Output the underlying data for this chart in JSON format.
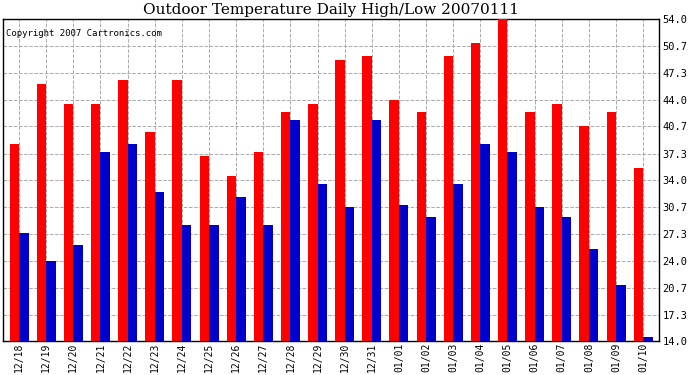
{
  "title": "Outdoor Temperature Daily High/Low 20070111",
  "copyright": "Copyright 2007 Cartronics.com",
  "dates": [
    "12/18",
    "12/19",
    "12/20",
    "12/21",
    "12/22",
    "12/23",
    "12/24",
    "12/25",
    "12/26",
    "12/27",
    "12/28",
    "12/29",
    "12/30",
    "12/31",
    "01/01",
    "01/02",
    "01/03",
    "01/04",
    "01/05",
    "01/06",
    "01/07",
    "01/08",
    "01/09",
    "01/10"
  ],
  "highs": [
    38.5,
    46.0,
    43.5,
    43.5,
    46.5,
    40.0,
    46.5,
    37.0,
    34.5,
    37.5,
    42.5,
    43.5,
    49.0,
    49.5,
    44.0,
    42.5,
    49.5,
    51.0,
    54.0,
    42.5,
    43.5,
    40.7,
    42.5,
    35.5
  ],
  "lows": [
    27.5,
    24.0,
    26.0,
    37.5,
    38.5,
    32.5,
    28.5,
    28.5,
    32.0,
    28.5,
    41.5,
    33.5,
    30.7,
    41.5,
    31.0,
    29.5,
    33.5,
    38.5,
    37.5,
    30.7,
    29.5,
    25.5,
    21.0,
    14.5
  ],
  "high_color": "#ff0000",
  "low_color": "#0000cc",
  "bg_color": "#ffffff",
  "plot_bg_color": "#ffffff",
  "grid_color": "#aaaaaa",
  "yticks": [
    14.0,
    17.3,
    20.7,
    24.0,
    27.3,
    30.7,
    34.0,
    37.3,
    40.7,
    44.0,
    47.3,
    50.7,
    54.0
  ],
  "ylim": [
    14.0,
    54.0
  ],
  "baseline": 14.0,
  "bar_width": 0.35,
  "title_fontsize": 11,
  "copyright_fontsize": 6.5
}
